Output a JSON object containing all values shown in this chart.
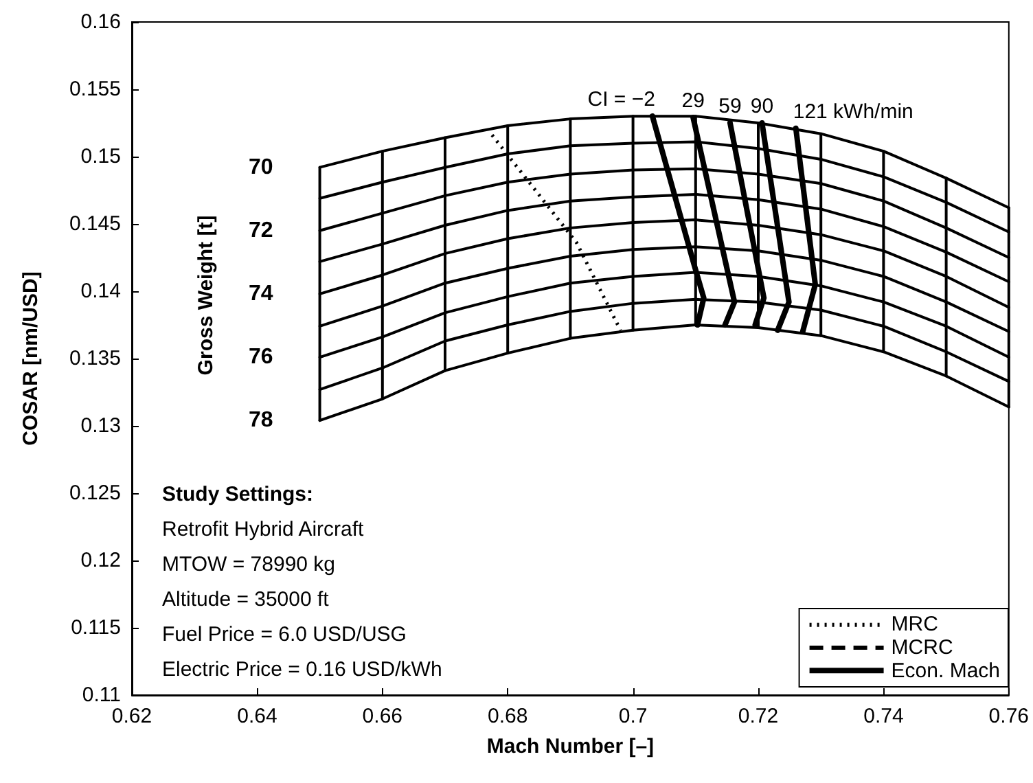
{
  "chart_data": {
    "type": "line",
    "xlabel": "Mach Number [–]",
    "ylabel": "COSAR [nm/USD]",
    "legend_title": "Gross Weight [t]",
    "xlim": [
      0.62,
      0.76
    ],
    "xticks": [
      0.62,
      0.64,
      0.66,
      0.68,
      0.7,
      0.72,
      0.74,
      0.76
    ],
    "ylim": [
      0.11,
      0.16
    ],
    "yticks": [
      0.11,
      0.115,
      0.12,
      0.125,
      0.13,
      0.135,
      0.14,
      0.145,
      0.15,
      0.155,
      0.16
    ],
    "grid": false,
    "legend": "bottom right",
    "marker": "none",
    "x": [
      0.65,
      0.66,
      0.67,
      0.68,
      0.69,
      0.7,
      0.71,
      0.72,
      0.73,
      0.74,
      0.75,
      0.76
    ],
    "series": [
      {
        "name": "70",
        "color": "#000000",
        "values": [
          0.1492,
          0.1504,
          0.1514,
          0.1523,
          0.1528,
          0.153,
          0.153,
          0.1525,
          0.1517,
          0.1504,
          0.1484,
          0.1462
        ]
      },
      {
        "color": "#000000",
        "values": [
          0.1469,
          0.1481,
          0.1492,
          0.1502,
          0.1508,
          0.151,
          0.1511,
          0.1506,
          0.1498,
          0.1485,
          0.1466,
          0.1444
        ]
      },
      {
        "name": "72",
        "color": "#000000",
        "values": [
          0.1445,
          0.1458,
          0.1471,
          0.1481,
          0.1487,
          0.149,
          0.1491,
          0.1487,
          0.148,
          0.1467,
          0.1447,
          0.1425
        ]
      },
      {
        "color": "#000000",
        "values": [
          0.1422,
          0.1435,
          0.1449,
          0.146,
          0.1467,
          0.147,
          0.1472,
          0.1468,
          0.1461,
          0.1448,
          0.1429,
          0.1407
        ]
      },
      {
        "name": "74",
        "color": "#000000",
        "values": [
          0.1398,
          0.1412,
          0.1428,
          0.1439,
          0.1447,
          0.1451,
          0.1453,
          0.1449,
          0.1442,
          0.143,
          0.1411,
          0.1388
        ]
      },
      {
        "color": "#000000",
        "values": [
          0.1374,
          0.1389,
          0.1406,
          0.1417,
          0.1426,
          0.1431,
          0.1433,
          0.143,
          0.1423,
          0.1411,
          0.1392,
          0.137
        ]
      },
      {
        "name": "76",
        "color": "#000000",
        "values": [
          0.1351,
          0.1366,
          0.1384,
          0.1396,
          0.1406,
          0.1411,
          0.1414,
          0.1411,
          0.1404,
          0.1392,
          0.1374,
          0.1351
        ]
      },
      {
        "color": "#000000",
        "values": [
          0.1327,
          0.1343,
          0.1363,
          0.1375,
          0.1385,
          0.1391,
          0.1394,
          0.1392,
          0.1386,
          0.1374,
          0.1355,
          0.1333
        ]
      },
      {
        "name": "78",
        "color": "#000000",
        "values": [
          0.1304,
          0.132,
          0.1341,
          0.1354,
          0.1365,
          0.1371,
          0.1375,
          0.1373,
          0.1367,
          0.1355,
          0.1337,
          0.1314
        ]
      },
      {
        "color": "#000000",
        "x": [
          0.65,
          0.65,
          0.65,
          0.65,
          0.65,
          0.65,
          0.65,
          0.65,
          0.65
        ],
        "values": [
          0.1492,
          0.1469,
          0.1445,
          0.1422,
          0.1398,
          0.1374,
          0.1351,
          0.1327,
          0.1304
        ]
      },
      {
        "color": "#000000",
        "x": [
          0.66,
          0.66,
          0.66,
          0.66,
          0.66,
          0.66,
          0.66,
          0.66,
          0.66
        ],
        "values": [
          0.1504,
          0.1481,
          0.1458,
          0.1435,
          0.1412,
          0.1389,
          0.1366,
          0.1343,
          0.132
        ]
      },
      {
        "color": "#000000",
        "x": [
          0.67,
          0.67,
          0.67,
          0.67,
          0.67,
          0.67,
          0.67,
          0.67,
          0.67
        ],
        "values": [
          0.1514,
          0.1492,
          0.1471,
          0.1449,
          0.1428,
          0.1406,
          0.1384,
          0.1363,
          0.1341
        ]
      },
      {
        "color": "#000000",
        "x": [
          0.68,
          0.68,
          0.68,
          0.68,
          0.68,
          0.68,
          0.68,
          0.68,
          0.68
        ],
        "values": [
          0.1523,
          0.1502,
          0.1481,
          0.146,
          0.1439,
          0.1417,
          0.1396,
          0.1375,
          0.1354
        ]
      },
      {
        "color": "#000000",
        "x": [
          0.69,
          0.69,
          0.69,
          0.69,
          0.69,
          0.69,
          0.69,
          0.69,
          0.69
        ],
        "values": [
          0.1528,
          0.1508,
          0.1487,
          0.1467,
          0.1447,
          0.1426,
          0.1406,
          0.1385,
          0.1365
        ]
      },
      {
        "color": "#000000",
        "x": [
          0.7,
          0.7,
          0.7,
          0.7,
          0.7,
          0.7,
          0.7,
          0.7,
          0.7
        ],
        "values": [
          0.153,
          0.151,
          0.149,
          0.147,
          0.1451,
          0.1431,
          0.1411,
          0.1391,
          0.1371
        ]
      },
      {
        "color": "#000000",
        "x": [
          0.71,
          0.71,
          0.71,
          0.71,
          0.71,
          0.71,
          0.71,
          0.71,
          0.71
        ],
        "values": [
          0.153,
          0.1511,
          0.1491,
          0.1472,
          0.1453,
          0.1433,
          0.1414,
          0.1394,
          0.1375
        ]
      },
      {
        "color": "#000000",
        "x": [
          0.72,
          0.72,
          0.72,
          0.72,
          0.72,
          0.72,
          0.72,
          0.72,
          0.72
        ],
        "values": [
          0.1525,
          0.1506,
          0.1487,
          0.1468,
          0.1449,
          0.143,
          0.1411,
          0.1392,
          0.1373
        ]
      },
      {
        "color": "#000000",
        "x": [
          0.73,
          0.73,
          0.73,
          0.73,
          0.73,
          0.73,
          0.73,
          0.73,
          0.73
        ],
        "values": [
          0.1517,
          0.1498,
          0.148,
          0.1461,
          0.1442,
          0.1423,
          0.1404,
          0.1386,
          0.1367
        ]
      },
      {
        "color": "#000000",
        "x": [
          0.74,
          0.74,
          0.74,
          0.74,
          0.74,
          0.74,
          0.74,
          0.74,
          0.74
        ],
        "values": [
          0.1504,
          0.1485,
          0.1467,
          0.1448,
          0.143,
          0.1411,
          0.1392,
          0.1374,
          0.1355
        ]
      },
      {
        "color": "#000000",
        "x": [
          0.75,
          0.75,
          0.75,
          0.75,
          0.75,
          0.75,
          0.75,
          0.75,
          0.75
        ],
        "values": [
          0.1484,
          0.1466,
          0.1447,
          0.1429,
          0.1411,
          0.1392,
          0.1374,
          0.1355,
          0.1337
        ]
      },
      {
        "color": "#000000",
        "x": [
          0.76,
          0.76,
          0.76,
          0.76,
          0.76,
          0.76,
          0.76,
          0.76,
          0.76
        ],
        "values": [
          0.1462,
          0.1444,
          0.1425,
          0.1407,
          0.1388,
          0.137,
          0.1351,
          0.1333,
          0.1314
        ]
      },
      {
        "name": "MRC",
        "color": "#000000",
        "line_style": "dotted",
        "x": [
          0.6775,
          0.691,
          0.698
        ],
        "values": [
          0.1516,
          0.1436,
          0.1371
        ]
      },
      {
        "name": "MCRC",
        "color": "#000000",
        "line_style": "dashed",
        "values": [
          null,
          null,
          null,
          null,
          null,
          null,
          null,
          null,
          null,
          null,
          null,
          null
        ]
      },
      {
        "name": "Econ. Mach",
        "color": "#000000",
        "line_style": "solid",
        "x": [
          0.7031,
          0.7098,
          0.7113,
          0.7103
        ],
        "values": [
          0.153,
          0.1419,
          0.1395,
          0.1375
        ]
      },
      {
        "color": "#000000",
        "line_style": "solid",
        "x": [
          0.7096,
          0.7162,
          0.7147
        ],
        "values": [
          0.1529,
          0.1392,
          0.1375
        ]
      },
      {
        "color": "#000000",
        "line_style": "solid",
        "x": [
          0.7155,
          0.7209,
          0.7195
        ],
        "values": [
          0.1525,
          0.1395,
          0.1375
        ]
      },
      {
        "color": "#000000",
        "line_style": "solid",
        "x": [
          0.7206,
          0.7249,
          0.7231
        ],
        "values": [
          0.1525,
          0.1392,
          0.1371
        ]
      },
      {
        "color": "#000000",
        "line_style": "solid",
        "x": [
          0.726,
          0.7291,
          0.7271
        ],
        "values": [
          0.1521,
          0.1405,
          0.137
        ]
      }
    ],
    "annotations": [
      "CI = −2",
      "29",
      "59",
      "90",
      "121 kWh/min",
      "Study Settings:",
      "Retrofit Hybrid Aircraft",
      "MTOW = 78990 kg",
      "Altitude = 35000 ft",
      "Fuel Price = 6.0 USD/USG",
      "Electric Price = 0.16 USD/kWh"
    ]
  }
}
